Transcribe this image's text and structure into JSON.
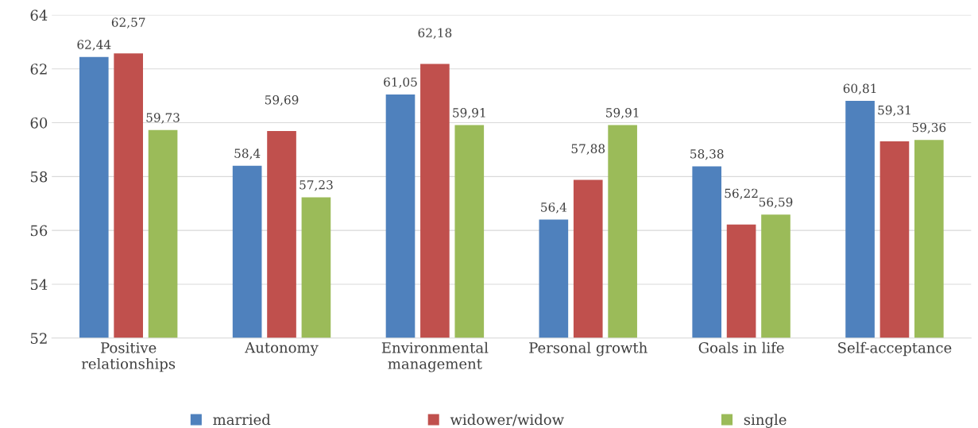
{
  "chart_data": {
    "type": "bar",
    "categories": [
      "Positive\nrelationships",
      "Autonomy",
      "Environmental\nmanagement",
      "Personal growth",
      "Goals in life",
      "Self-acceptance"
    ],
    "series": [
      {
        "name": "married",
        "color": "#4f81bd",
        "values": [
          62.44,
          58.4,
          61.05,
          56.4,
          58.38,
          60.81
        ],
        "value_labels": [
          "62,44",
          "58,4",
          "61,05",
          "56,4",
          "58,38",
          "60,81"
        ]
      },
      {
        "name": "widower/widow",
        "color": "#c0504d",
        "values": [
          62.57,
          59.69,
          62.18,
          57.88,
          56.22,
          59.31
        ],
        "value_labels": [
          "62,57",
          "59,69",
          "62,18",
          "57,88",
          "56,22",
          "59,31"
        ]
      },
      {
        "name": "single",
        "color": "#9bbb59",
        "values": [
          59.73,
          57.23,
          59.91,
          59.91,
          56.59,
          59.36
        ],
        "value_labels": [
          "59,73",
          "57,23",
          "59,91",
          "59,91",
          "56,59",
          "59,36"
        ]
      }
    ],
    "ylim": [
      52,
      64
    ],
    "yticks": [
      52,
      54,
      56,
      58,
      60,
      62,
      64
    ],
    "grid": "y",
    "legend": "bottom"
  }
}
